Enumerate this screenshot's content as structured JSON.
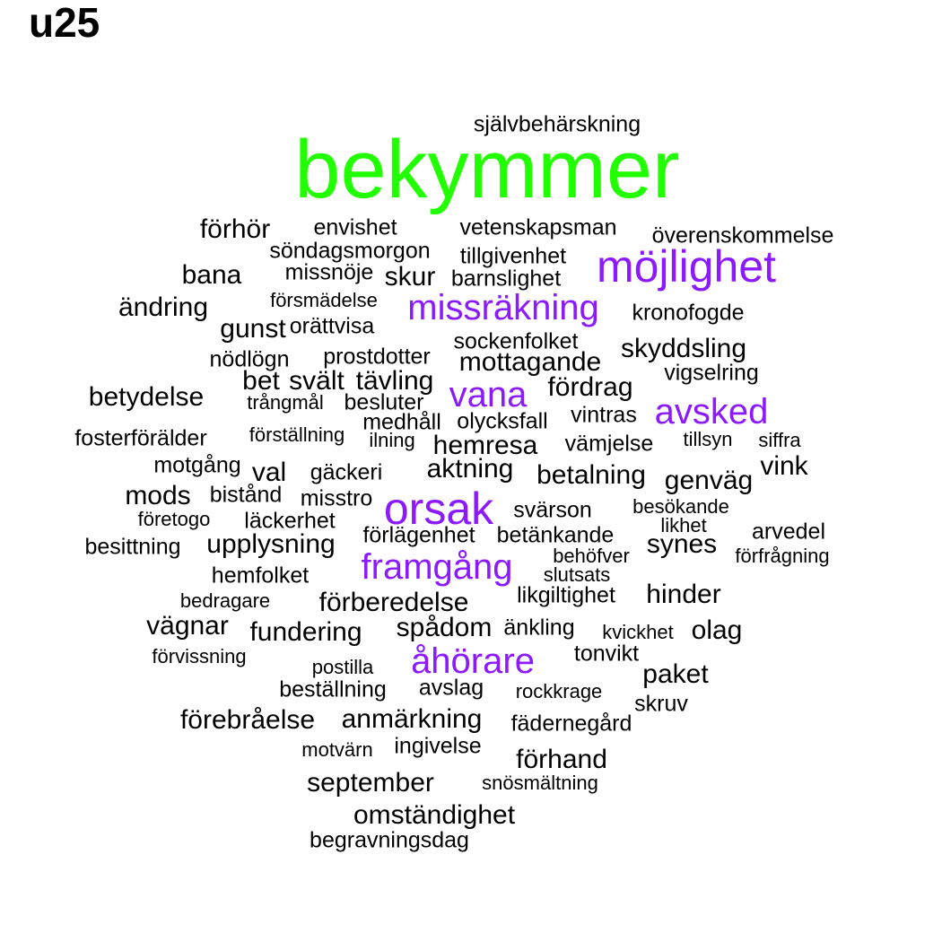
{
  "title": "u25",
  "palette": {
    "xl": "#22ff00",
    "l": "#8b1aff",
    "m": "#8b1aff",
    "s": "#000000",
    "xs": "#000000",
    "xxs": "#000000"
  },
  "words": [
    {
      "text": "självbehärskning",
      "size": "xs"
    },
    {
      "text": "bekymmer",
      "size": "xl"
    },
    {
      "text": "förhör",
      "size": "s"
    },
    {
      "text": "envishet",
      "size": "xs"
    },
    {
      "text": "vetenskapsman",
      "size": "xs"
    },
    {
      "text": "överenskommelse",
      "size": "xs"
    },
    {
      "text": "söndagsmorgon",
      "size": "xs"
    },
    {
      "text": "tillgivenhet",
      "size": "xs"
    },
    {
      "text": "möjlighet",
      "size": "l"
    },
    {
      "text": "bana",
      "size": "s"
    },
    {
      "text": "missnöje",
      "size": "xs"
    },
    {
      "text": "skur",
      "size": "s"
    },
    {
      "text": "barnslighet",
      "size": "xs"
    },
    {
      "text": "försmädelse",
      "size": "xxs"
    },
    {
      "text": "missräkning",
      "size": "m"
    },
    {
      "text": "ändring",
      "size": "s"
    },
    {
      "text": "kronofogde",
      "size": "xs"
    },
    {
      "text": "gunst",
      "size": "s"
    },
    {
      "text": "orättvisa",
      "size": "xs"
    },
    {
      "text": "sockenfolket",
      "size": "xs"
    },
    {
      "text": "skyddsling",
      "size": "s"
    },
    {
      "text": "nödlögn",
      "size": "xs"
    },
    {
      "text": "prostdotter",
      "size": "xs"
    },
    {
      "text": "mottagande",
      "size": "s"
    },
    {
      "text": "vigselring",
      "size": "xs"
    },
    {
      "text": "bet",
      "size": "s"
    },
    {
      "text": "svält",
      "size": "s"
    },
    {
      "text": "tävling",
      "size": "s"
    },
    {
      "text": "fördrag",
      "size": "s"
    },
    {
      "text": "betydelse",
      "size": "s"
    },
    {
      "text": "vana",
      "size": "m"
    },
    {
      "text": "trångmål",
      "size": "xxs"
    },
    {
      "text": "besluter",
      "size": "xs"
    },
    {
      "text": "vintras",
      "size": "xs"
    },
    {
      "text": "avsked",
      "size": "m"
    },
    {
      "text": "medhåll",
      "size": "xs"
    },
    {
      "text": "olycksfall",
      "size": "xs"
    },
    {
      "text": "fosterförälder",
      "size": "xs"
    },
    {
      "text": "förställning",
      "size": "xxs"
    },
    {
      "text": "ilning",
      "size": "xxs"
    },
    {
      "text": "hemresa",
      "size": "s"
    },
    {
      "text": "vämjelse",
      "size": "xs"
    },
    {
      "text": "tillsyn",
      "size": "xxs"
    },
    {
      "text": "siffra",
      "size": "xxs"
    },
    {
      "text": "motgång",
      "size": "xs"
    },
    {
      "text": "val",
      "size": "s"
    },
    {
      "text": "gäckeri",
      "size": "xs"
    },
    {
      "text": "aktning",
      "size": "s"
    },
    {
      "text": "betalning",
      "size": "s"
    },
    {
      "text": "genväg",
      "size": "s"
    },
    {
      "text": "vink",
      "size": "s"
    },
    {
      "text": "mods",
      "size": "s"
    },
    {
      "text": "bistånd",
      "size": "xs"
    },
    {
      "text": "misstro",
      "size": "xs"
    },
    {
      "text": "orsak",
      "size": "l"
    },
    {
      "text": "svärson",
      "size": "xs"
    },
    {
      "text": "besökande",
      "size": "xxs"
    },
    {
      "text": "företogo",
      "size": "xxs"
    },
    {
      "text": "läckerhet",
      "size": "xs"
    },
    {
      "text": "likhet",
      "size": "xxs"
    },
    {
      "text": "arvedel",
      "size": "xs"
    },
    {
      "text": "förlägenhet",
      "size": "xs"
    },
    {
      "text": "betänkande",
      "size": "xs"
    },
    {
      "text": "besittning",
      "size": "xs"
    },
    {
      "text": "upplysning",
      "size": "s"
    },
    {
      "text": "synes",
      "size": "s"
    },
    {
      "text": "behöfver",
      "size": "xxs"
    },
    {
      "text": "förfrågning",
      "size": "xxs"
    },
    {
      "text": "framgång",
      "size": "m"
    },
    {
      "text": "hemfolket",
      "size": "xs"
    },
    {
      "text": "slutsats",
      "size": "xxs"
    },
    {
      "text": "hinder",
      "size": "s"
    },
    {
      "text": "likgiltighet",
      "size": "xs"
    },
    {
      "text": "bedragare",
      "size": "xxs"
    },
    {
      "text": "förberedelse",
      "size": "s"
    },
    {
      "text": "vägnar",
      "size": "s"
    },
    {
      "text": "spådom",
      "size": "s"
    },
    {
      "text": "änkling",
      "size": "xs"
    },
    {
      "text": "kvickhet",
      "size": "xxs"
    },
    {
      "text": "olag",
      "size": "s"
    },
    {
      "text": "fundering",
      "size": "s"
    },
    {
      "text": "tonvikt",
      "size": "xs"
    },
    {
      "text": "förvissning",
      "size": "xxs"
    },
    {
      "text": "åhörare",
      "size": "m"
    },
    {
      "text": "postilla",
      "size": "xxs"
    },
    {
      "text": "paket",
      "size": "s"
    },
    {
      "text": "avslag",
      "size": "xs"
    },
    {
      "text": "beställning",
      "size": "xs"
    },
    {
      "text": "rockkrage",
      "size": "xxs"
    },
    {
      "text": "skruv",
      "size": "xs"
    },
    {
      "text": "förebråelse",
      "size": "s"
    },
    {
      "text": "anmärkning",
      "size": "s"
    },
    {
      "text": "fädernegård",
      "size": "xs"
    },
    {
      "text": "ingivelse",
      "size": "xs"
    },
    {
      "text": "motvärn",
      "size": "xxs"
    },
    {
      "text": "förhand",
      "size": "s"
    },
    {
      "text": "september",
      "size": "s"
    },
    {
      "text": "snösmältning",
      "size": "xxs"
    },
    {
      "text": "omständighet",
      "size": "s"
    },
    {
      "text": "begravningsdag",
      "size": "xs"
    }
  ]
}
